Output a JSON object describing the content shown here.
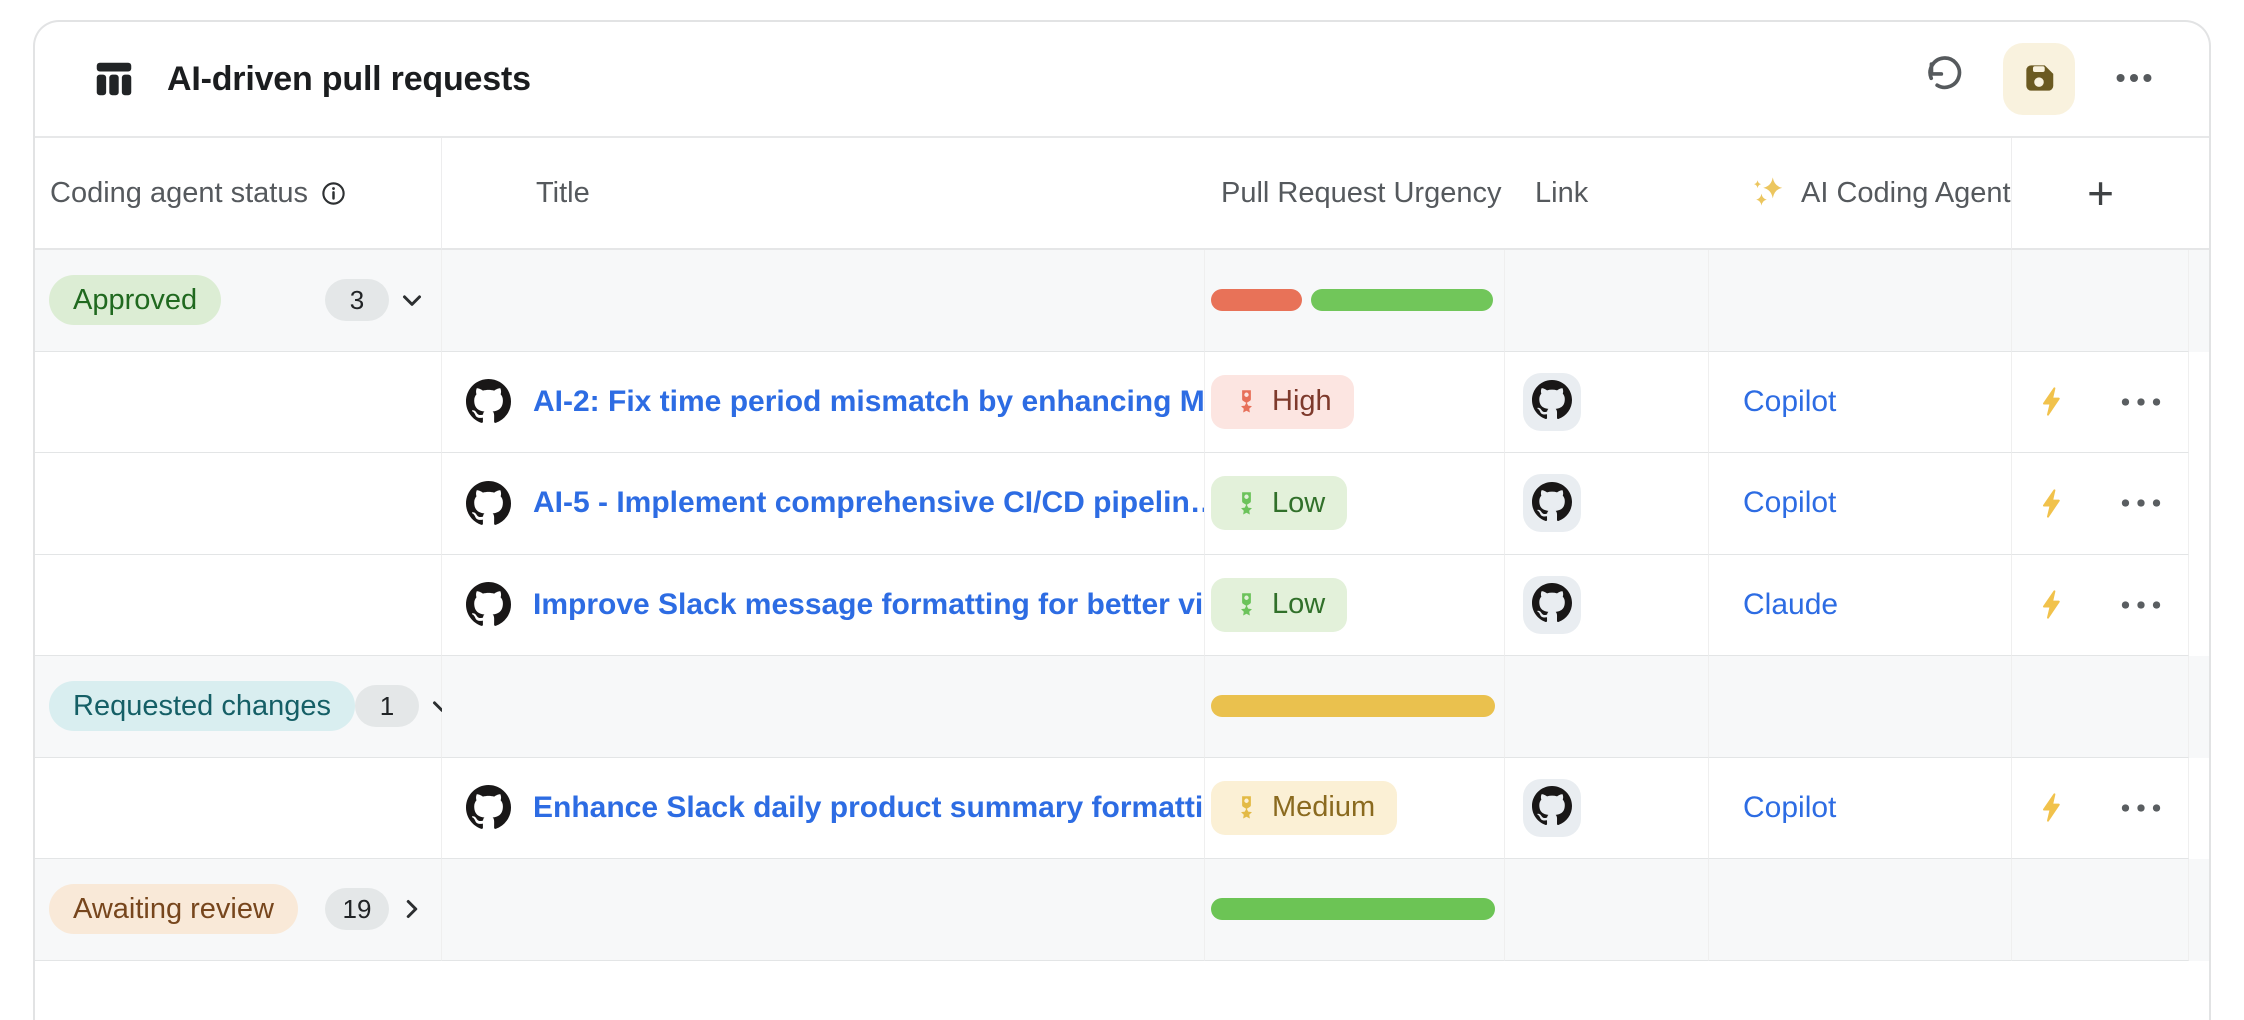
{
  "header": {
    "title": "AI-driven pull requests",
    "toolbar_icons": [
      "table-icon",
      "undo-icon",
      "save-icon",
      "more-icon"
    ]
  },
  "columns": [
    {
      "label": "Coding agent status",
      "icon": "info-icon"
    },
    {
      "label": "Title"
    },
    {
      "label": "Pull Request Urgency"
    },
    {
      "label": "Link"
    },
    {
      "label": "AI Coding Agent",
      "icon": "sparkle-icon"
    },
    {
      "label": "+",
      "icon": "add-icon"
    }
  ],
  "colors": {
    "link_blue": "#2d6ce3",
    "card_border": "#e2e3e4",
    "group_row_bg": "#f7f8f9",
    "selected_outline": "#6f7376",
    "save_button_bg": "#f9f2de",
    "save_icon": "#6b5a21",
    "lightning": "#f1c24c",
    "github_chip_bg": "#e9edf1",
    "count_pill_bg": "#e4e7e8"
  },
  "urgency_styles": {
    "High": {
      "bg": "#fce5e1",
      "text": "#7e3a2c",
      "icon": "#e7705a"
    },
    "Medium": {
      "bg": "#fbf0d5",
      "text": "#8a6a1f",
      "icon": "#e3ba45"
    },
    "Low": {
      "bg": "#e3f1da",
      "text": "#31702a",
      "icon": "#6cc35b"
    }
  },
  "groups": [
    {
      "status": "Approved",
      "count": "3",
      "collapsed": false,
      "selected": false,
      "badge_bg": "#dcedd4",
      "badge_text": "#20691f",
      "summary_bars": [
        {
          "color": "#e87258",
          "pct": 32
        },
        {
          "color": "#71c65a",
          "pct": 64
        }
      ],
      "rows": [
        {
          "title": "AI-2: Fix time period mismatch by enhancing M…",
          "urgency": "High",
          "agent": "Copilot"
        },
        {
          "title": "AI-5 - Implement comprehensive CI/CD pipelin…",
          "urgency": "Low",
          "agent": "Copilot"
        },
        {
          "title": "Improve Slack message formatting for better vi…",
          "urgency": "Low",
          "agent": "Claude"
        }
      ]
    },
    {
      "status": "Requested changes",
      "count": "1",
      "collapsed": false,
      "selected": true,
      "badge_bg": "#d9eef0",
      "badge_text": "#155f66",
      "summary_bars": [
        {
          "color": "#eac14e",
          "pct": 100
        }
      ],
      "rows": [
        {
          "title": "Enhance Slack daily product summary formatti…",
          "urgency": "Medium",
          "agent": "Copilot"
        }
      ]
    },
    {
      "status": "Awaiting review",
      "count": "19",
      "collapsed": true,
      "selected": false,
      "badge_bg": "#f9e9d8",
      "badge_text": "#77461d",
      "summary_bars": [
        {
          "color": "#6cc455",
          "pct": 100
        }
      ],
      "rows": []
    }
  ]
}
